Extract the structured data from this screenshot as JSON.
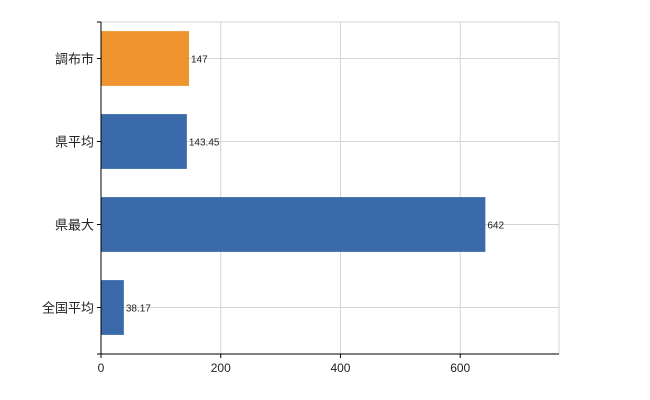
{
  "chart_data": {
    "type": "bar",
    "orientation": "horizontal",
    "categories": [
      "調布市",
      "県平均",
      "県最大",
      "全国平均"
    ],
    "values": [
      147,
      143.45,
      642,
      38.17
    ],
    "value_labels": [
      "147",
      "143.45",
      "642",
      "38.17"
    ],
    "bar_colors": [
      "#f0942f",
      "#3a6aa9",
      "#3a6aa9",
      "#3a6aa9"
    ],
    "xlim": [
      0,
      765
    ],
    "xticks": [
      0,
      200,
      400,
      600
    ],
    "xtick_labels": [
      "0",
      "200",
      "400",
      "600"
    ],
    "grid": true,
    "legend": "none",
    "title": "",
    "xlabel": "",
    "ylabel": ""
  }
}
